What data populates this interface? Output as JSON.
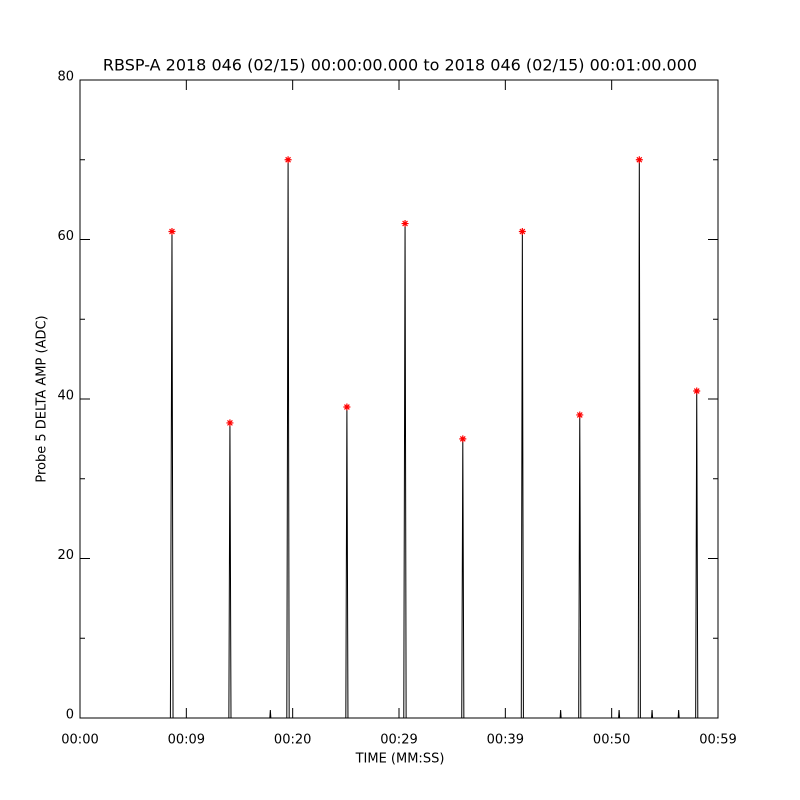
{
  "chart_data": {
    "type": "line",
    "title": "RBSP-A 2018 046 (02/15) 00:00:00.000 to 2018 046 (02/15) 00:01:00.000",
    "xlabel": "TIME (MM:SS)",
    "ylabel": "Probe 5 DELTA AMP (ADC)",
    "xlim": [
      0,
      60
    ],
    "ylim": [
      0,
      80
    ],
    "xticks": [
      {
        "value": 0,
        "label": "00:00"
      },
      {
        "value": 10,
        "label": "00:09"
      },
      {
        "value": 20,
        "label": "00:20"
      },
      {
        "value": 30,
        "label": "00:29"
      },
      {
        "value": 40,
        "label": "00:39"
      },
      {
        "value": 50,
        "label": "00:50"
      },
      {
        "value": 60,
        "label": "00:59"
      }
    ],
    "yticks": [
      0,
      20,
      40,
      60,
      80
    ],
    "yminorticks": [
      10,
      30,
      50,
      70
    ],
    "series": [
      {
        "color": "#000000",
        "x": [
          0,
          8.5,
          8.65,
          8.75,
          14.0,
          14.1,
          14.2,
          17.85,
          17.9,
          17.95,
          19.45,
          19.57,
          19.67,
          25.0,
          25.1,
          25.2,
          30.45,
          30.57,
          30.67,
          35.9,
          36.0,
          36.1,
          41.5,
          41.6,
          41.7,
          45.15,
          45.2,
          45.25,
          46.9,
          47.0,
          47.1,
          50.65,
          50.7,
          50.75,
          52.5,
          52.6,
          52.7,
          53.75,
          53.8,
          53.85,
          56.25,
          56.3,
          56.35,
          57.9,
          58.0,
          58.1,
          60
        ],
        "values": [
          0,
          0,
          61,
          0,
          0,
          37,
          0,
          0,
          1,
          0,
          0,
          70,
          0,
          0,
          39,
          0,
          0,
          62,
          0,
          0,
          35,
          0,
          0,
          61,
          0,
          0,
          1,
          0,
          0,
          38,
          0,
          0,
          1,
          0,
          0,
          70,
          0,
          0,
          1,
          0,
          0,
          1,
          0,
          0,
          41,
          0,
          0
        ]
      },
      {
        "color": "#ff0000",
        "marker": "star",
        "x": [
          8.65,
          14.1,
          19.57,
          25.1,
          30.57,
          36.0,
          41.6,
          47.0,
          52.6,
          58.0
        ],
        "values": [
          61,
          37,
          70,
          39,
          62,
          35,
          61,
          38,
          70,
          41
        ]
      }
    ]
  }
}
